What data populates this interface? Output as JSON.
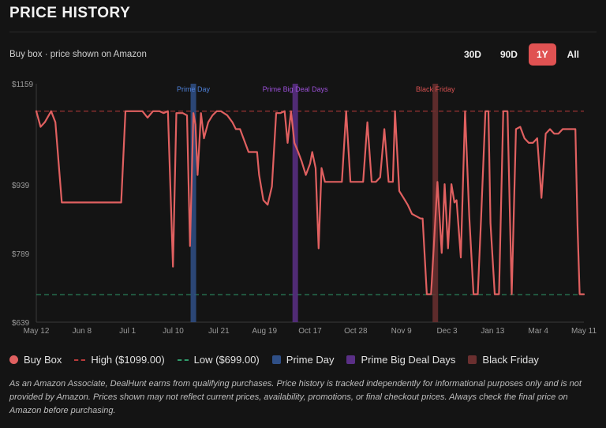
{
  "header": {
    "title": "PRICE HISTORY"
  },
  "subtitle": "Buy box · price shown on Amazon",
  "ranges": [
    {
      "label": "30D",
      "active": false
    },
    {
      "label": "90D",
      "active": false
    },
    {
      "label": "1Y",
      "active": true
    },
    {
      "label": "All",
      "active": false
    }
  ],
  "colors": {
    "price": "#e06060",
    "high": "#b83a3a",
    "low": "#2f9a6a",
    "prime_day": "#2f4f86",
    "prime_big_deal_days": "#5a2f86",
    "black_friday": "#6a2f2f"
  },
  "chart_data": {
    "type": "line",
    "yticks": [
      "$1159",
      "$939",
      "$789",
      "$639"
    ],
    "ylim": [
      639,
      1159
    ],
    "xticks": [
      "May 12",
      "Jun 8",
      "Jul 1",
      "Jul 10",
      "Jul 21",
      "Aug 19",
      "Oct 17",
      "Oct 28",
      "Nov 9",
      "Dec 3",
      "Jan 13",
      "Mar 4",
      "May 11"
    ],
    "series": [
      {
        "name": "Buy Box",
        "points": [
          [
            0,
            1099
          ],
          [
            0.01,
            1065
          ],
          [
            0.02,
            1075
          ],
          [
            0.035,
            1099
          ],
          [
            0.045,
            1075
          ],
          [
            0.06,
            900
          ],
          [
            0.13,
            900
          ],
          [
            0.2,
            900
          ],
          [
            0.21,
            1099
          ],
          [
            0.25,
            1099
          ],
          [
            0.262,
            1085
          ],
          [
            0.275,
            1099
          ],
          [
            0.29,
            1099
          ],
          [
            0.3,
            1095
          ],
          [
            0.31,
            1099
          ],
          [
            0.322,
            760
          ],
          [
            0.33,
            1095
          ],
          [
            0.345,
            1095
          ],
          [
            0.355,
            1090
          ],
          [
            0.362,
            805
          ],
          [
            0.37,
            1095
          ],
          [
            0.375,
            1070
          ],
          [
            0.38,
            960
          ],
          [
            0.388,
            1095
          ],
          [
            0.395,
            1040
          ],
          [
            0.405,
            1075
          ],
          [
            0.415,
            1090
          ],
          [
            0.425,
            1099
          ],
          [
            0.435,
            1099
          ],
          [
            0.45,
            1090
          ],
          [
            0.462,
            1075
          ],
          [
            0.47,
            1060
          ],
          [
            0.48,
            1060
          ],
          [
            0.49,
            1035
          ],
          [
            0.5,
            1010
          ],
          [
            0.51,
            1010
          ],
          [
            0.52,
            1010
          ],
          [
            0.525,
            960
          ],
          [
            0.535,
            905
          ],
          [
            0.545,
            895
          ],
          [
            0.555,
            935
          ],
          [
            0.565,
            1095
          ],
          [
            0.575,
            1095
          ],
          [
            0.585,
            1099
          ],
          [
            0.592,
            1030
          ],
          [
            0.6,
            1099
          ],
          [
            0.608,
            1030
          ],
          [
            0.617,
            1010
          ],
          [
            0.625,
            990
          ],
          [
            0.635,
            960
          ],
          [
            0.645,
            985
          ],
          [
            0.65,
            1010
          ],
          [
            0.658,
            975
          ],
          [
            0.665,
            800
          ],
          [
            0.672,
            975
          ],
          [
            0.68,
            945
          ],
          [
            0.69,
            945
          ],
          [
            0.7,
            945
          ],
          [
            0.72,
            945
          ],
          [
            0.73,
            1099
          ],
          [
            0.74,
            945
          ],
          [
            0.75,
            945
          ],
          [
            0.76,
            945
          ],
          [
            0.77,
            945
          ],
          [
            0.78,
            1075
          ],
          [
            0.79,
            945
          ],
          [
            0.8,
            945
          ],
          [
            0.81,
            955
          ],
          [
            0.82,
            1060
          ],
          [
            0.83,
            945
          ],
          [
            0.84,
            945
          ],
          [
            0.845,
            1099
          ],
          [
            0.855,
            925
          ],
          [
            0.865,
            910
          ],
          [
            0.875,
            895
          ],
          [
            0.885,
            875
          ],
          [
            0.895,
            870
          ],
          [
            0.905,
            865
          ],
          [
            0.91,
            865
          ],
          [
            0.92,
            700
          ],
          [
            0.93,
            700
          ],
          [
            0.945,
            945
          ],
          [
            0.955,
            790
          ],
          [
            0.962,
            940
          ],
          [
            0.97,
            800
          ],
          [
            0.978,
            940
          ],
          [
            0.985,
            900
          ],
          [
            0.99,
            905
          ],
          [
            1.0,
            780
          ],
          [
            1.01,
            1099
          ],
          [
            1.02,
            870
          ],
          [
            1.03,
            700
          ],
          [
            1.04,
            700
          ],
          [
            1.048,
            870
          ],
          [
            1.058,
            1099
          ],
          [
            1.065,
            1099
          ],
          [
            1.07,
            855
          ],
          [
            1.08,
            700
          ],
          [
            1.09,
            700
          ],
          [
            1.1,
            1099
          ],
          [
            1.11,
            1099
          ],
          [
            1.12,
            700
          ],
          [
            1.13,
            1060
          ],
          [
            1.14,
            1065
          ],
          [
            1.15,
            1040
          ],
          [
            1.16,
            1030
          ],
          [
            1.17,
            1030
          ],
          [
            1.18,
            1040
          ],
          [
            1.19,
            910
          ],
          [
            1.2,
            1050
          ],
          [
            1.21,
            1060
          ],
          [
            1.22,
            1050
          ],
          [
            1.23,
            1050
          ],
          [
            1.24,
            1060
          ],
          [
            1.25,
            1060
          ],
          [
            1.26,
            1060
          ],
          [
            1.27,
            1060
          ],
          [
            1.275,
            850
          ],
          [
            1.28,
            700
          ],
          [
            1.29,
            700
          ]
        ]
      }
    ],
    "reference_lines": [
      {
        "name": "High ($1099.00)",
        "value": 1099
      },
      {
        "name": "Low ($699.00)",
        "value": 699
      }
    ],
    "events": [
      {
        "name": "Prime Day",
        "x": 0.37
      },
      {
        "name": "Prime Big Deal Days",
        "x": 0.61
      },
      {
        "name": "Black Friday",
        "x": 0.94
      }
    ],
    "x_domain": [
      0,
      1.29
    ],
    "grid": false
  },
  "legend": [
    {
      "label": "Buy Box",
      "kind": "dot",
      "color": "#e06060"
    },
    {
      "label": "High ($1099.00)",
      "kind": "dash",
      "color": "#b83a3a"
    },
    {
      "label": "Low ($699.00)",
      "kind": "dash",
      "color": "#2f9a6a"
    },
    {
      "label": "Prime Day",
      "kind": "box",
      "color": "#2f4f86"
    },
    {
      "label": "Prime Big Deal Days",
      "kind": "box",
      "color": "#5a2f86"
    },
    {
      "label": "Black Friday",
      "kind": "box",
      "color": "#6a2f2f"
    }
  ],
  "disclaimer": "As an Amazon Associate, DealHunt earns from qualifying purchases. Price history is tracked independently for informational purposes only and is not provided by Amazon. Prices shown may not reflect current prices, availability, promotions, or final checkout prices. Always check the final price on Amazon before purchasing."
}
